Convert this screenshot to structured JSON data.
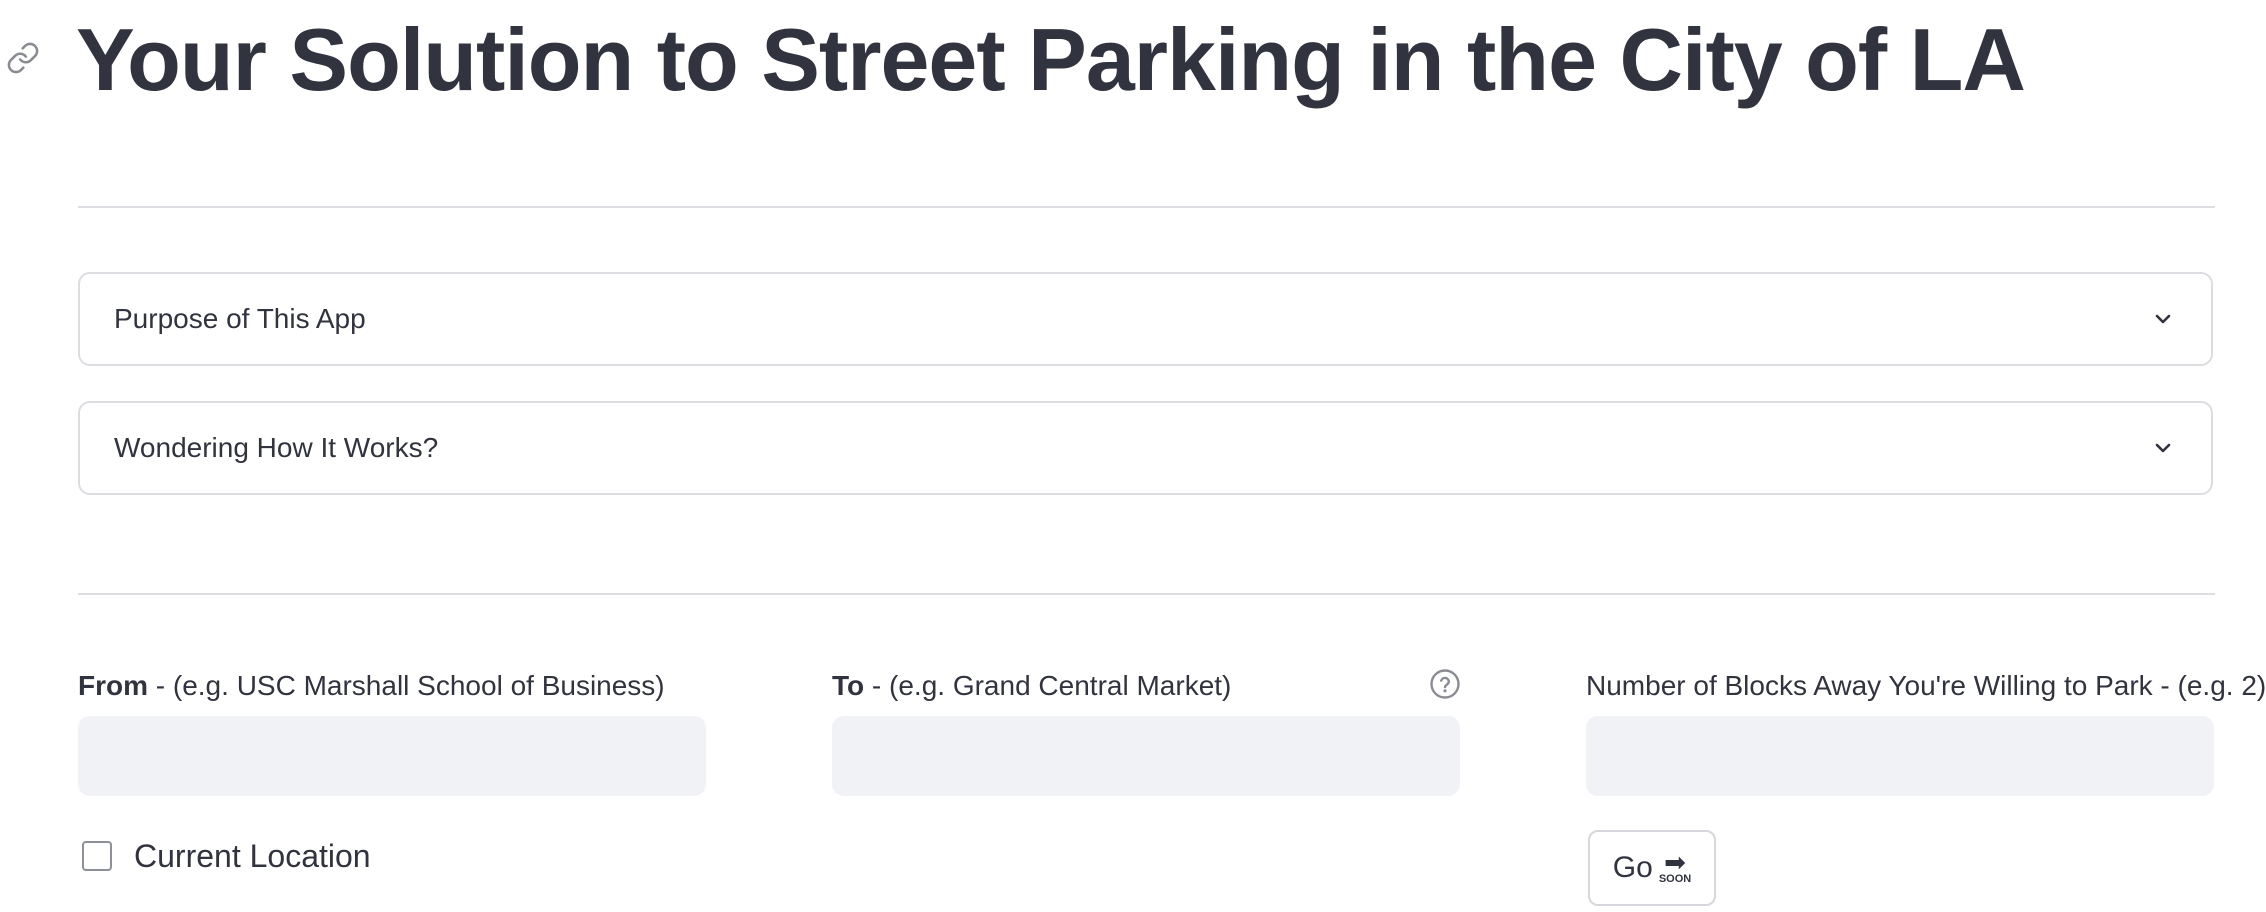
{
  "header": {
    "title": "Your Solution to Street Parking in the City of LA",
    "anchor_icon": "link-icon"
  },
  "expanders": [
    {
      "label": "Purpose of This App",
      "icon": "chevron-down-icon",
      "expanded": false
    },
    {
      "label": "Wondering How It Works?",
      "icon": "chevron-down-icon",
      "expanded": false
    }
  ],
  "form": {
    "from": {
      "label_bold": "From",
      "label_rest": " - (e.g. USC Marshall School of Business)",
      "value": "",
      "placeholder": ""
    },
    "to": {
      "label_bold": "To",
      "label_rest": " - (e.g. Grand Central Market)",
      "value": "",
      "placeholder": "",
      "help_icon": "question-circle-icon"
    },
    "blocks": {
      "label": "Number of Blocks Away You're Willing to Park - (e.g. 2)",
      "value": "",
      "placeholder": ""
    },
    "current_location": {
      "label": "Current Location",
      "checked": false
    },
    "go_button": {
      "label": "Go",
      "badge_icon": "soon-arrow-icon",
      "badge_text": "SOON"
    }
  },
  "colors": {
    "text": "#31333f",
    "input_bg": "#f0f2f6",
    "border": "#dcdde1"
  }
}
